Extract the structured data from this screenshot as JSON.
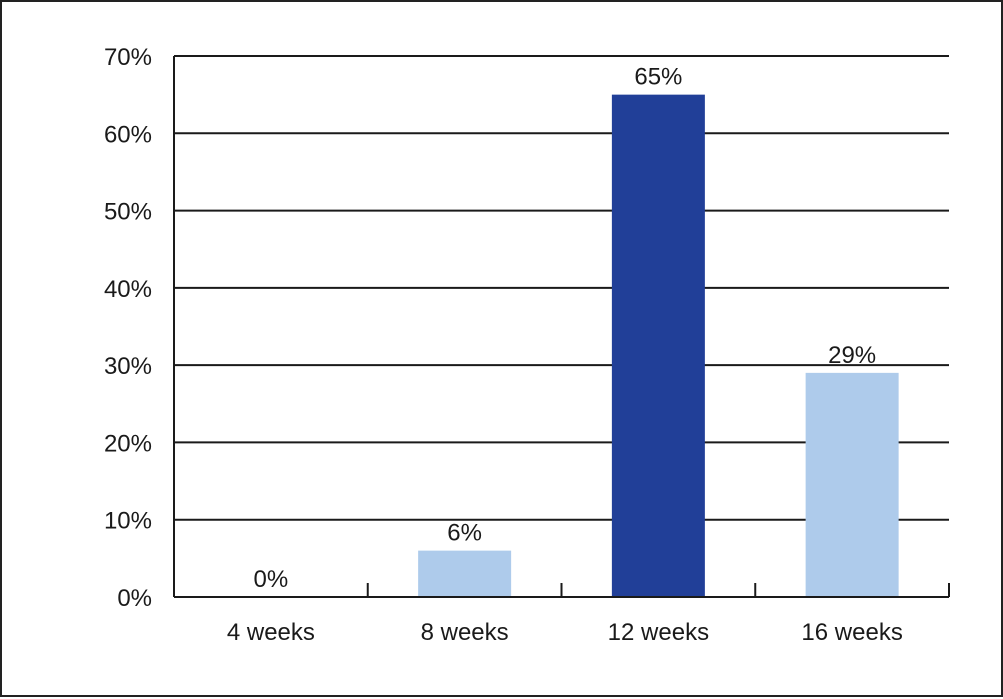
{
  "chart_data": {
    "type": "bar",
    "categories": [
      "4 weeks",
      "8 weeks",
      "12 weeks",
      "16 weeks"
    ],
    "values": [
      0,
      6,
      65,
      29
    ],
    "value_labels": [
      "0%",
      "6%",
      "65%",
      "29%"
    ],
    "title": "",
    "xlabel": "",
    "ylabel": "",
    "ylim": [
      0,
      70
    ],
    "yticks": [
      0,
      10,
      20,
      30,
      40,
      50,
      60,
      70
    ],
    "ytick_labels": [
      "0%",
      "10%",
      "20%",
      "30%",
      "40%",
      "50%",
      "60%",
      "70%"
    ],
    "grid": true,
    "legend": "none",
    "colors": [
      "#aecbeb",
      "#aecbeb",
      "#213f98",
      "#aecbeb"
    ]
  }
}
